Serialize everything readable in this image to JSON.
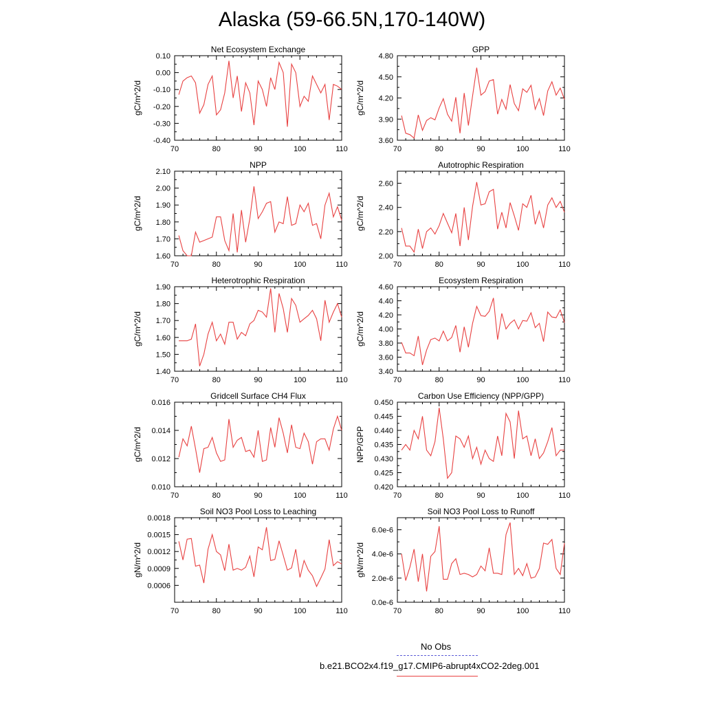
{
  "title": "Alaska (59-66.5N,170-140W)",
  "legend": {
    "obs_label": "No Obs",
    "model_label": "b.e21.BCO2x4.f19_g17.CMIP6-abrupt4xCO2-2deg.001",
    "obs_color": "#5a5ad6",
    "model_color": "#e84040"
  },
  "chart_data": [
    {
      "type": "line",
      "title": "Net Ecosystem Exchange",
      "ylabel": "gC/m^2/d",
      "xlim": [
        70,
        110
      ],
      "xticks": [
        70,
        80,
        90,
        100,
        110
      ],
      "ylim": [
        -0.4,
        0.1
      ],
      "yticks": [
        "-0.40",
        "-0.30",
        "-0.20",
        "-0.10",
        "0.00",
        "0.10"
      ],
      "x_start": 71,
      "values": [
        -0.13,
        -0.05,
        -0.03,
        -0.02,
        -0.06,
        -0.24,
        -0.19,
        -0.07,
        -0.02,
        -0.25,
        -0.22,
        -0.12,
        0.07,
        -0.15,
        -0.02,
        -0.23,
        -0.06,
        -0.12,
        -0.31,
        -0.05,
        -0.1,
        -0.2,
        -0.03,
        -0.1,
        0.06,
        0.0,
        -0.32,
        0.05,
        0.0,
        -0.2,
        -0.14,
        -0.17,
        -0.02,
        -0.07,
        -0.12,
        -0.07,
        -0.28,
        -0.07,
        -0.08,
        -0.1
      ]
    },
    {
      "type": "line",
      "title": "GPP",
      "ylabel": "gC/m^2/d",
      "xlim": [
        70,
        110
      ],
      "xticks": [
        70,
        80,
        90,
        100,
        110
      ],
      "ylim": [
        3.6,
        4.8
      ],
      "yticks": [
        "3.60",
        "3.90",
        "4.20",
        "4.50",
        "4.80"
      ],
      "x_start": 71,
      "values": [
        3.95,
        3.7,
        3.68,
        3.63,
        3.96,
        3.74,
        3.88,
        3.92,
        3.89,
        4.06,
        4.19,
        3.97,
        3.87,
        4.21,
        3.7,
        4.27,
        3.81,
        4.23,
        4.63,
        4.24,
        4.29,
        4.44,
        4.46,
        3.97,
        4.18,
        4.04,
        4.39,
        4.12,
        4.02,
        4.33,
        4.28,
        4.38,
        4.04,
        4.19,
        3.95,
        4.3,
        4.43,
        4.24,
        4.34,
        4.18
      ]
    },
    {
      "type": "line",
      "title": "NPP",
      "ylabel": "gC/m^2/d",
      "xlim": [
        70,
        110
      ],
      "xticks": [
        70,
        80,
        90,
        100,
        110
      ],
      "ylim": [
        1.6,
        2.1
      ],
      "yticks": [
        "1.60",
        "1.70",
        "1.80",
        "1.90",
        "2.00",
        "2.10"
      ],
      "x_start": 71,
      "values": [
        1.72,
        1.63,
        1.6,
        1.6,
        1.74,
        1.68,
        1.69,
        1.7,
        1.71,
        1.83,
        1.83,
        1.69,
        1.63,
        1.85,
        1.62,
        1.87,
        1.68,
        1.82,
        2.01,
        1.82,
        1.86,
        1.91,
        1.92,
        1.74,
        1.8,
        1.79,
        1.95,
        1.78,
        1.79,
        1.9,
        1.86,
        1.91,
        1.78,
        1.79,
        1.7,
        1.9,
        1.97,
        1.83,
        1.89,
        1.81
      ]
    },
    {
      "type": "line",
      "title": "Autotrophic Respiration",
      "ylabel": "gC/m^2/d",
      "xlim": [
        70,
        110
      ],
      "xticks": [
        70,
        80,
        90,
        100,
        110
      ],
      "ylim": [
        2.0,
        2.7
      ],
      "yticks": [
        "2.00",
        "2.20",
        "2.40",
        "2.60"
      ],
      "x_start": 71,
      "values": [
        2.23,
        2.08,
        2.08,
        2.03,
        2.22,
        2.06,
        2.2,
        2.23,
        2.18,
        2.25,
        2.35,
        2.27,
        2.19,
        2.35,
        2.08,
        2.4,
        2.13,
        2.41,
        2.61,
        2.42,
        2.43,
        2.53,
        2.55,
        2.22,
        2.36,
        2.23,
        2.44,
        2.33,
        2.21,
        2.43,
        2.4,
        2.5,
        2.26,
        2.37,
        2.23,
        2.42,
        2.48,
        2.4,
        2.45,
        2.36
      ]
    },
    {
      "type": "line",
      "title": "Heterotrophic Respiration",
      "ylabel": "gC/m^2/d",
      "xlim": [
        70,
        110
      ],
      "xticks": [
        70,
        80,
        90,
        100,
        110
      ],
      "ylim": [
        1.4,
        1.9
      ],
      "yticks": [
        "1.40",
        "1.50",
        "1.60",
        "1.70",
        "1.80",
        "1.90"
      ],
      "x_start": 71,
      "values": [
        1.58,
        1.58,
        1.58,
        1.59,
        1.68,
        1.43,
        1.5,
        1.62,
        1.69,
        1.58,
        1.62,
        1.56,
        1.69,
        1.69,
        1.59,
        1.63,
        1.61,
        1.68,
        1.7,
        1.76,
        1.75,
        1.72,
        1.89,
        1.63,
        1.86,
        1.77,
        1.63,
        1.83,
        1.79,
        1.69,
        1.71,
        1.73,
        1.76,
        1.71,
        1.58,
        1.82,
        1.69,
        1.75,
        1.8,
        1.72
      ]
    },
    {
      "type": "line",
      "title": "Ecosystem Respiration",
      "ylabel": "gC/m^2/d",
      "xlim": [
        70,
        110
      ],
      "xticks": [
        70,
        80,
        90,
        100,
        110
      ],
      "ylim": [
        3.4,
        4.6
      ],
      "yticks": [
        "3.40",
        "3.60",
        "3.80",
        "4.00",
        "4.20",
        "4.40",
        "4.60"
      ],
      "x_start": 71,
      "values": [
        3.81,
        3.66,
        3.66,
        3.62,
        3.9,
        3.49,
        3.7,
        3.85,
        3.87,
        3.83,
        3.97,
        3.83,
        3.88,
        4.05,
        3.67,
        4.03,
        3.74,
        4.08,
        4.32,
        4.19,
        4.18,
        4.25,
        4.44,
        3.85,
        4.22,
        4.0,
        4.08,
        4.13,
        4.0,
        4.12,
        4.11,
        4.23,
        4.02,
        4.08,
        3.82,
        4.24,
        4.17,
        4.16,
        4.27,
        4.09
      ]
    },
    {
      "type": "line",
      "title": "Gridcell Surface CH4 Flux",
      "ylabel": "gC/m^2/d",
      "xlim": [
        70,
        110
      ],
      "xticks": [
        70,
        80,
        90,
        100,
        110
      ],
      "ylim": [
        0.01,
        0.016
      ],
      "yticks": [
        "0.010",
        "0.012",
        "0.014",
        "0.016"
      ],
      "x_start": 71,
      "values": [
        0.0121,
        0.0134,
        0.0129,
        0.0143,
        0.0127,
        0.011,
        0.0127,
        0.0128,
        0.0135,
        0.0124,
        0.0118,
        0.0119,
        0.0148,
        0.0128,
        0.0133,
        0.0135,
        0.0125,
        0.0126,
        0.0121,
        0.014,
        0.0118,
        0.0119,
        0.0142,
        0.0128,
        0.0149,
        0.0138,
        0.0124,
        0.0144,
        0.0128,
        0.0127,
        0.0138,
        0.0132,
        0.0116,
        0.0132,
        0.0134,
        0.0134,
        0.0126,
        0.0141,
        0.015,
        0.014
      ]
    },
    {
      "type": "line",
      "title": "Carbon Use Efficiency (NPP/GPP)",
      "ylabel": "NPP/GPP",
      "xlim": [
        70,
        110
      ],
      "xticks": [
        70,
        80,
        90,
        100,
        110
      ],
      "ylim": [
        0.42,
        0.45
      ],
      "yticks": [
        "0.420",
        "0.425",
        "0.430",
        "0.435",
        "0.440",
        "0.445",
        "0.450"
      ],
      "x_start": 71,
      "values": [
        0.433,
        0.435,
        0.433,
        0.44,
        0.437,
        0.445,
        0.433,
        0.431,
        0.436,
        0.448,
        0.437,
        0.423,
        0.425,
        0.438,
        0.437,
        0.434,
        0.438,
        0.43,
        0.434,
        0.428,
        0.433,
        0.43,
        0.429,
        0.438,
        0.431,
        0.446,
        0.443,
        0.43,
        0.447,
        0.437,
        0.438,
        0.431,
        0.437,
        0.43,
        0.432,
        0.436,
        0.441,
        0.431,
        0.433,
        0.433
      ]
    },
    {
      "type": "line",
      "title": "Soil NO3 Pool Loss to Leaching",
      "ylabel": "gN/m^2/d",
      "xlim": [
        70,
        110
      ],
      "xticks": [
        70,
        80,
        90,
        100,
        110
      ],
      "ylim": [
        0.0003,
        0.0018
      ],
      "yticks": [
        "0.0006",
        "0.0009",
        "0.0012",
        "0.0015",
        "0.0018"
      ],
      "x_start": 71,
      "values": [
        0.00138,
        0.00105,
        0.00142,
        0.00143,
        0.00094,
        0.00096,
        0.00064,
        0.00124,
        0.0015,
        0.0012,
        0.00114,
        0.00086,
        0.00133,
        0.00087,
        0.0009,
        0.00087,
        0.00092,
        0.00112,
        0.00075,
        0.00128,
        0.00123,
        0.00163,
        0.00104,
        0.00106,
        0.00139,
        0.00113,
        0.00087,
        0.00091,
        0.00124,
        0.00074,
        0.00104,
        0.00087,
        0.00077,
        0.00058,
        0.00073,
        0.00089,
        0.00141,
        0.00095,
        0.00102,
        0.00098
      ]
    },
    {
      "type": "line",
      "title": "Soil NO3 Pool Loss to Runoff",
      "ylabel": "gN/m^2/d",
      "xlim": [
        70,
        110
      ],
      "xticks": [
        70,
        80,
        90,
        100,
        110
      ],
      "ylim": [
        0.0,
        7e-06
      ],
      "yticks": [
        "0.0e-6",
        "2.0e-6",
        "4.0e-6",
        "6.0e-6"
      ],
      "ytick_values": [
        0.0,
        2e-06,
        4e-06,
        6e-06
      ],
      "x_start": 71,
      "values": [
        4e-06,
        1.8e-06,
        2.9e-06,
        4.4e-06,
        1.7e-06,
        4e-06,
        9e-07,
        3.8e-06,
        4.2e-06,
        6.3e-06,
        1.9e-06,
        1.9e-06,
        3.2e-06,
        3.6e-06,
        2.3e-06,
        2.4e-06,
        2.3e-06,
        2.1e-06,
        2.3e-06,
        3e-06,
        2.6e-06,
        4.5e-06,
        2.4e-06,
        2.4e-06,
        2.3e-06,
        5.6e-06,
        6.6e-06,
        2.3e-06,
        2.8e-06,
        2.2e-06,
        3.2e-06,
        2e-06,
        2.1e-06,
        2.8e-06,
        4.9e-06,
        4.8e-06,
        5.2e-06,
        2.8e-06,
        2.3e-06,
        4.9e-06
      ]
    }
  ]
}
